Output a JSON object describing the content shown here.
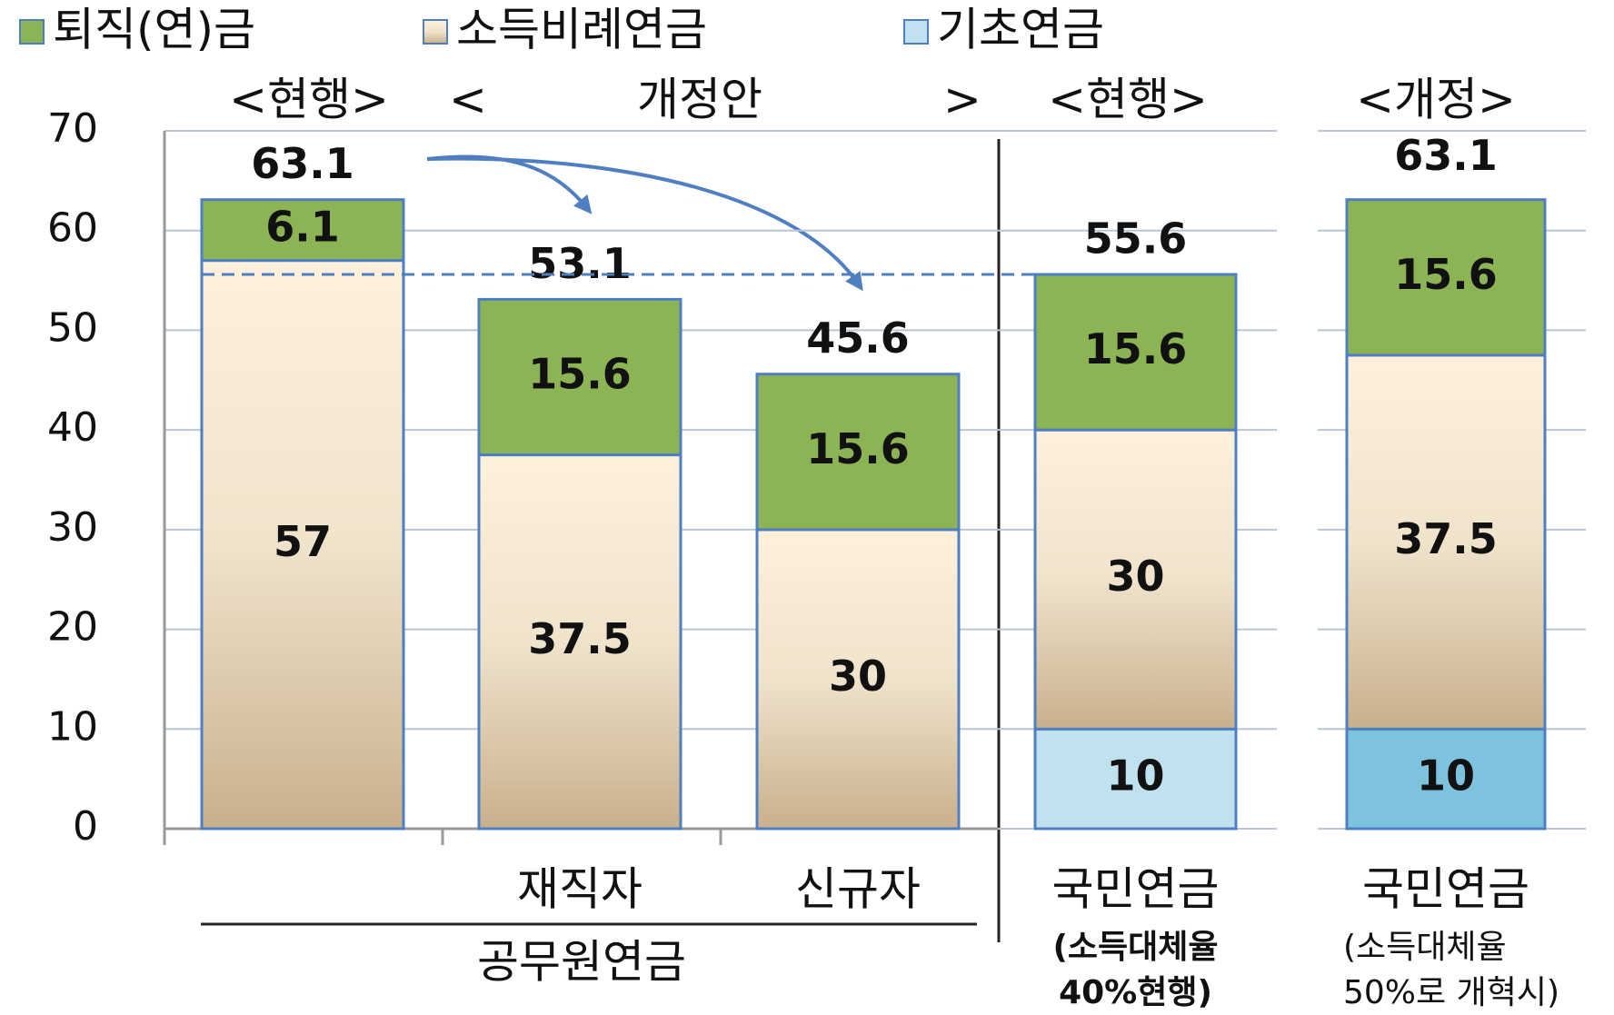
{
  "chart_data": {
    "type": "stacked_bar",
    "headers": [
      "<현행>",
      "<",
      "개정안",
      ">",
      "<현행>",
      "<개정>"
    ],
    "categories": [
      null,
      "재직자",
      "신규자",
      "국민연금",
      "국민연금"
    ],
    "category_notes": [
      null,
      null,
      null,
      [
        "(소득대체율",
        "40%현행)"
      ],
      [
        "(소득대체율",
        "50%로 개혁시)"
      ]
    ],
    "group_label": "공무원연금",
    "series": [
      {
        "name": "기초연금",
        "color": "#bfe2ee",
        "values": [
          null,
          null,
          null,
          10,
          10
        ]
      },
      {
        "name": "소득비례연금",
        "color": "#f3e6cf",
        "values": [
          57,
          37.5,
          30,
          30,
          37.5
        ]
      },
      {
        "name": "퇴직(연)금",
        "color": "#8cb454",
        "values": [
          6.1,
          15.6,
          15.6,
          15.6,
          15.6
        ]
      }
    ],
    "totals": [
      63.1,
      53.1,
      45.6,
      55.6,
      63.1
    ],
    "ylim": [
      0,
      70
    ],
    "yticks": [
      0,
      10,
      20,
      30,
      40,
      50,
      60,
      70
    ],
    "grid": true
  }
}
